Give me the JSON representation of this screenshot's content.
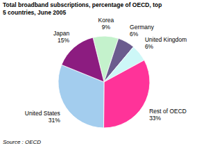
{
  "chart_data": {
    "type": "pie",
    "title": "Total broadband subscriptions, percentage of OECD, top 5 countries, June 2005",
    "source": "Source : OECD",
    "categories": [
      "Korea",
      "Germany",
      "United Kingdom",
      "Rest of OECD",
      "United States",
      "Japan"
    ],
    "values": [
      9,
      6,
      6,
      33,
      31,
      15
    ],
    "value_labels": [
      "9%",
      "6%",
      "6%",
      "33%",
      "31%",
      "15%"
    ],
    "colors": [
      "#c4f2cc",
      "#6b5b8e",
      "#cdf7f7",
      "#ff3399",
      "#a3cdee",
      "#8c1c80"
    ],
    "data_labels": true
  }
}
